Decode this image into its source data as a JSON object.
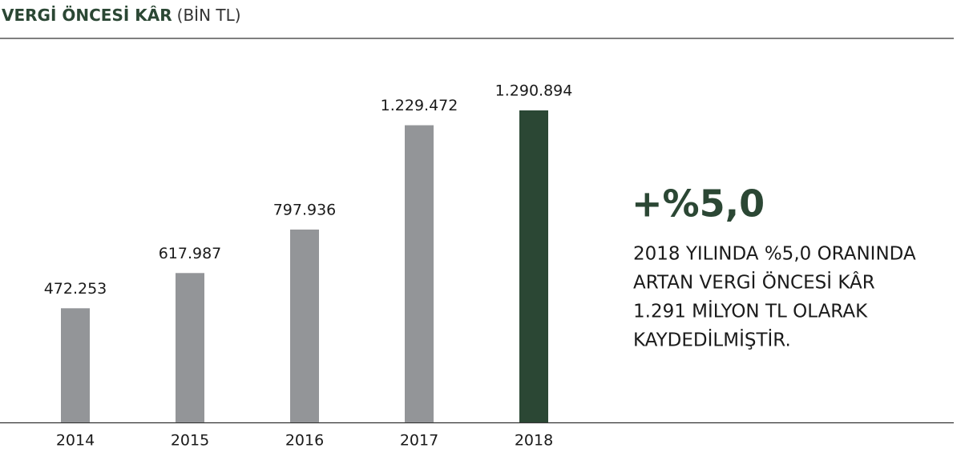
{
  "chart_data": {
    "type": "bar",
    "title": "VERGİ ÖNCESİ KÂR",
    "subtitle": "(BİN TL)",
    "categories": [
      "2014",
      "2015",
      "2016",
      "2017",
      "2018"
    ],
    "values": [
      472253,
      617987,
      797936,
      1229472,
      1290894
    ],
    "value_labels": [
      "472.253",
      "617.987",
      "797.936",
      "1.229.472",
      "1.290.894"
    ],
    "colors": [
      "#939598",
      "#939598",
      "#939598",
      "#939598",
      "#2b4734"
    ],
    "annotation": {
      "headline": "+%5,0",
      "lines": [
        "2018 YILINDA %5,0 ORANINDA",
        "ARTAN VERGİ ÖNCESİ KÂR",
        "1.291 MİLYON TL OLARAK",
        "KAYDEDİLMİŞTİR."
      ]
    }
  }
}
